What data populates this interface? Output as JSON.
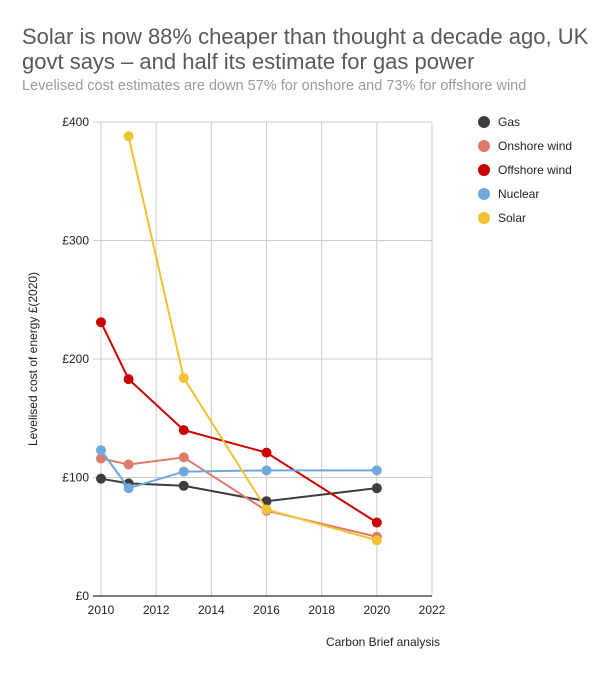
{
  "header": {
    "title": "Solar is now 88% cheaper than thought a decade ago, UK govt says – and half its estimate for gas power",
    "subtitle": "Levelised cost estimates are down 57% for onshore and 73% for offshore wind"
  },
  "source": "Carbon Brief analysis",
  "chart_data": {
    "type": "line",
    "title": "Solar is now 88% cheaper than thought a decade ago, UK govt says – and half its estimate for gas power",
    "subtitle": "Levelised cost estimates are down 57% for onshore and 73% for offshore wind",
    "xlabel": "",
    "ylabel": "Levelised cost of energy £(2020)",
    "xlim": [
      2010,
      2022
    ],
    "ylim": [
      0,
      400
    ],
    "x_ticks": [
      "2010",
      "2012",
      "2014",
      "2016",
      "2018",
      "2020",
      "2022"
    ],
    "x_tick_values": [
      2010,
      2012,
      2014,
      2016,
      2018,
      2020,
      2022
    ],
    "y_ticks": [
      "£0",
      "£100",
      "£200",
      "£300",
      "£400"
    ],
    "y_tick_values": [
      0,
      100,
      200,
      300,
      400
    ],
    "grid": true,
    "legend_position": "right",
    "series": [
      {
        "name": "Gas",
        "color": "#3d3d3d",
        "x": [
          2010,
          2011,
          2013,
          2016,
          2020
        ],
        "values": [
          99,
          95,
          93,
          80,
          91
        ]
      },
      {
        "name": "Onshore wind",
        "color": "#e07b6b",
        "x": [
          2010,
          2011,
          2013,
          2016,
          2020
        ],
        "values": [
          116,
          111,
          117,
          72,
          50
        ]
      },
      {
        "name": "Offshore wind",
        "color": "#cc0000",
        "x": [
          2010,
          2011,
          2013,
          2016,
          2020
        ],
        "values": [
          231,
          183,
          140,
          121,
          62
        ]
      },
      {
        "name": "Nuclear",
        "color": "#6fa8dc",
        "x": [
          2010,
          2011,
          2013,
          2016,
          2020
        ],
        "values": [
          123,
          91,
          105,
          106,
          106
        ]
      },
      {
        "name": "Solar",
        "color": "#f1c232",
        "x": [
          2011,
          2013,
          2016,
          2020
        ],
        "values": [
          388,
          184,
          73,
          47
        ]
      }
    ]
  }
}
